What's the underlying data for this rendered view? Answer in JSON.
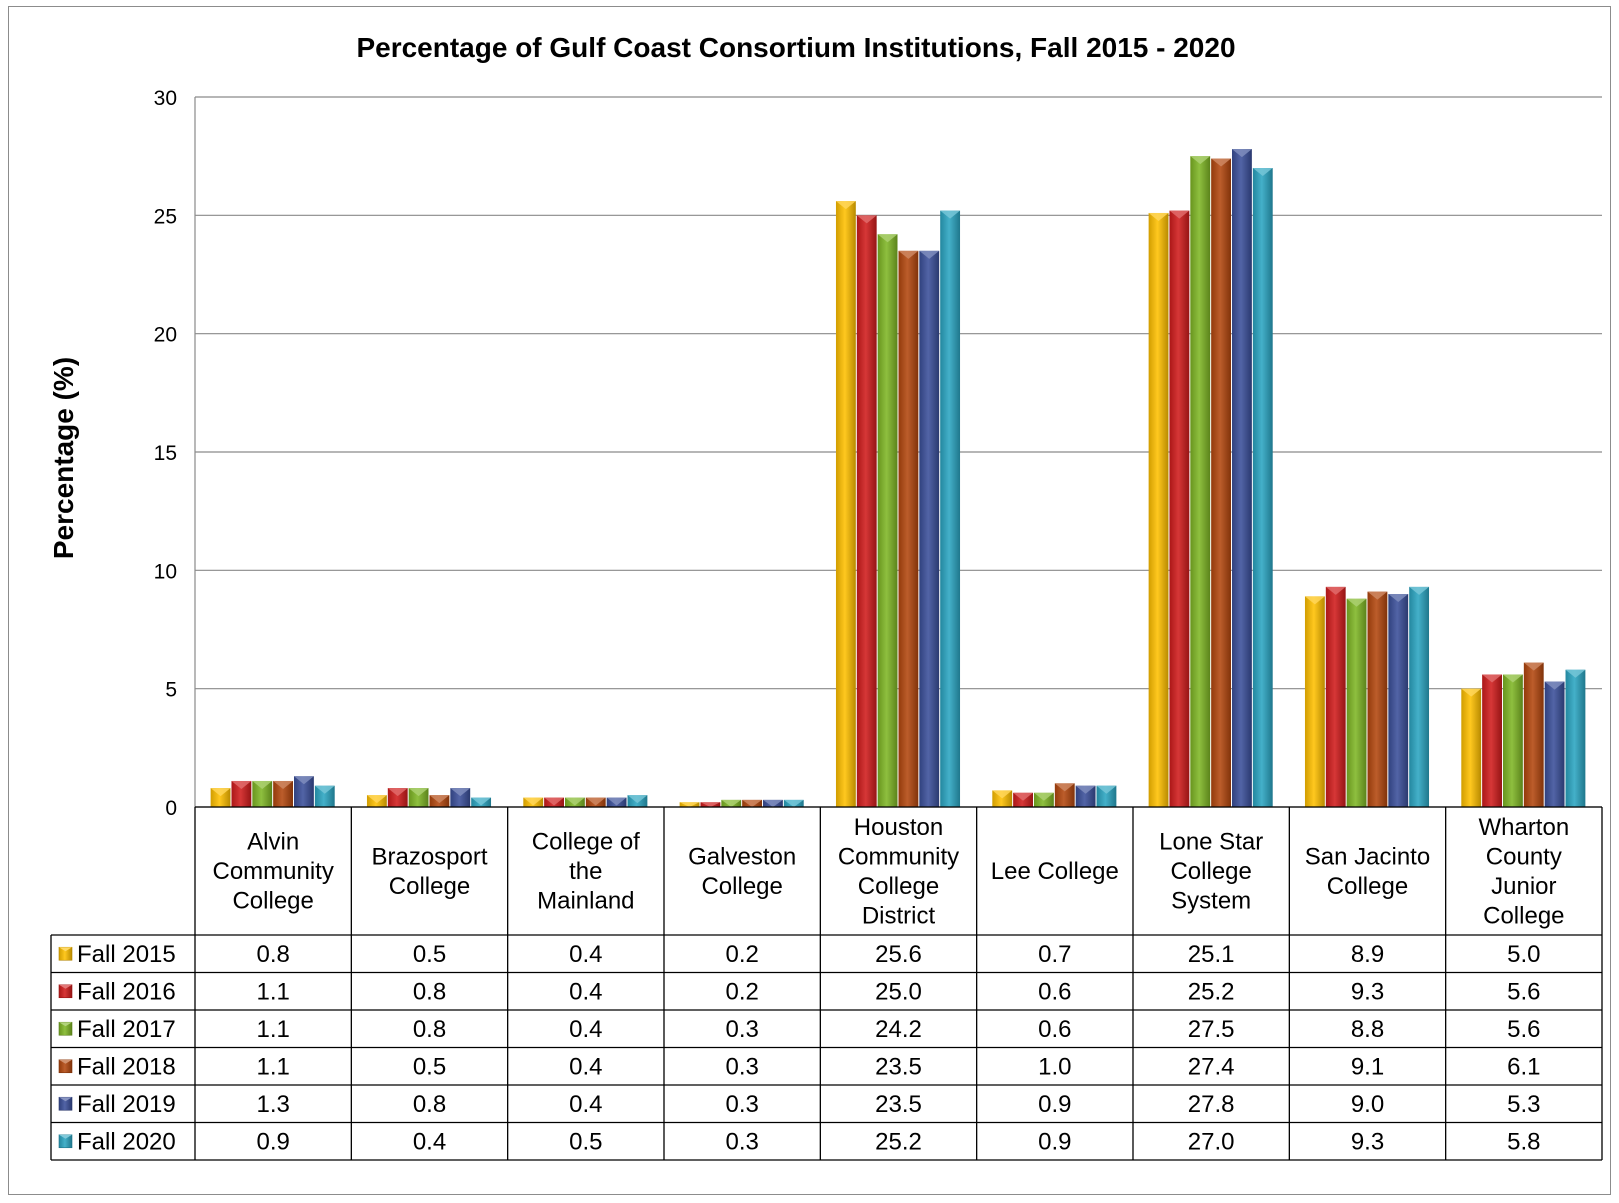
{
  "chart_data": {
    "type": "bar",
    "title": "Percentage of Gulf Coast Consortium Institutions, Fall 2015 - 2020",
    "xlabel": "",
    "ylabel": "Percentage (%)",
    "ylim": [
      0,
      30
    ],
    "yticks": [
      "0",
      "5",
      "10",
      "15",
      "20",
      "25",
      "30"
    ],
    "grid": true,
    "legend": "data table rows (left)",
    "categories": [
      [
        "Alvin",
        "Community",
        "College"
      ],
      [
        "Brazosport",
        "College"
      ],
      [
        "College of",
        "the",
        "Mainland"
      ],
      [
        "Galveston",
        "College"
      ],
      [
        "Houston",
        "Community",
        "College",
        "District"
      ],
      [
        "Lee College"
      ],
      [
        "Lone Star",
        "College",
        "System"
      ],
      [
        "San Jacinto",
        "College"
      ],
      [
        "Wharton",
        "County",
        "Junior",
        "College"
      ]
    ],
    "series": [
      {
        "name": "Fall 2015",
        "color": "#FFC000",
        "values": [
          0.8,
          0.5,
          0.4,
          0.2,
          25.6,
          0.7,
          25.1,
          8.9,
          5.0
        ],
        "labels": [
          "0.8",
          "0.5",
          "0.4",
          "0.2",
          "25.6",
          "0.7",
          "25.1",
          "8.9",
          "5.0"
        ]
      },
      {
        "name": "Fall 2016",
        "color": "#D01C1C",
        "values": [
          1.1,
          0.8,
          0.4,
          0.2,
          25.0,
          0.6,
          25.2,
          9.3,
          5.6
        ],
        "labels": [
          "1.1",
          "0.8",
          "0.4",
          "0.2",
          "25.0",
          "0.6",
          "25.2",
          "9.3",
          "5.6"
        ]
      },
      {
        "name": "Fall 2017",
        "color": "#7FB625",
        "values": [
          1.1,
          0.8,
          0.4,
          0.3,
          24.2,
          0.6,
          27.5,
          8.8,
          5.6
        ],
        "labels": [
          "1.1",
          "0.8",
          "0.4",
          "0.3",
          "24.2",
          "0.6",
          "27.5",
          "8.8",
          "5.6"
        ]
      },
      {
        "name": "Fall 2018",
        "color": "#B3470E",
        "values": [
          1.1,
          0.5,
          0.4,
          0.3,
          23.5,
          1.0,
          27.4,
          9.1,
          6.1
        ],
        "labels": [
          "1.1",
          "0.5",
          "0.4",
          "0.3",
          "23.5",
          "1.0",
          "27.4",
          "9.1",
          "6.1"
        ]
      },
      {
        "name": "Fall 2019",
        "color": "#3A4F9A",
        "values": [
          1.3,
          0.8,
          0.4,
          0.3,
          23.5,
          0.9,
          27.8,
          9.0,
          5.3
        ],
        "labels": [
          "1.3",
          "0.8",
          "0.4",
          "0.3",
          "23.5",
          "0.9",
          "27.8",
          "9.0",
          "5.3"
        ]
      },
      {
        "name": "Fall 2020",
        "color": "#2BA5C2",
        "values": [
          0.9,
          0.4,
          0.5,
          0.3,
          25.2,
          0.9,
          27.0,
          9.3,
          5.8
        ],
        "labels": [
          "0.9",
          "0.4",
          "0.5",
          "0.3",
          "25.2",
          "0.9",
          "27.0",
          "9.3",
          "5.8"
        ]
      }
    ]
  }
}
